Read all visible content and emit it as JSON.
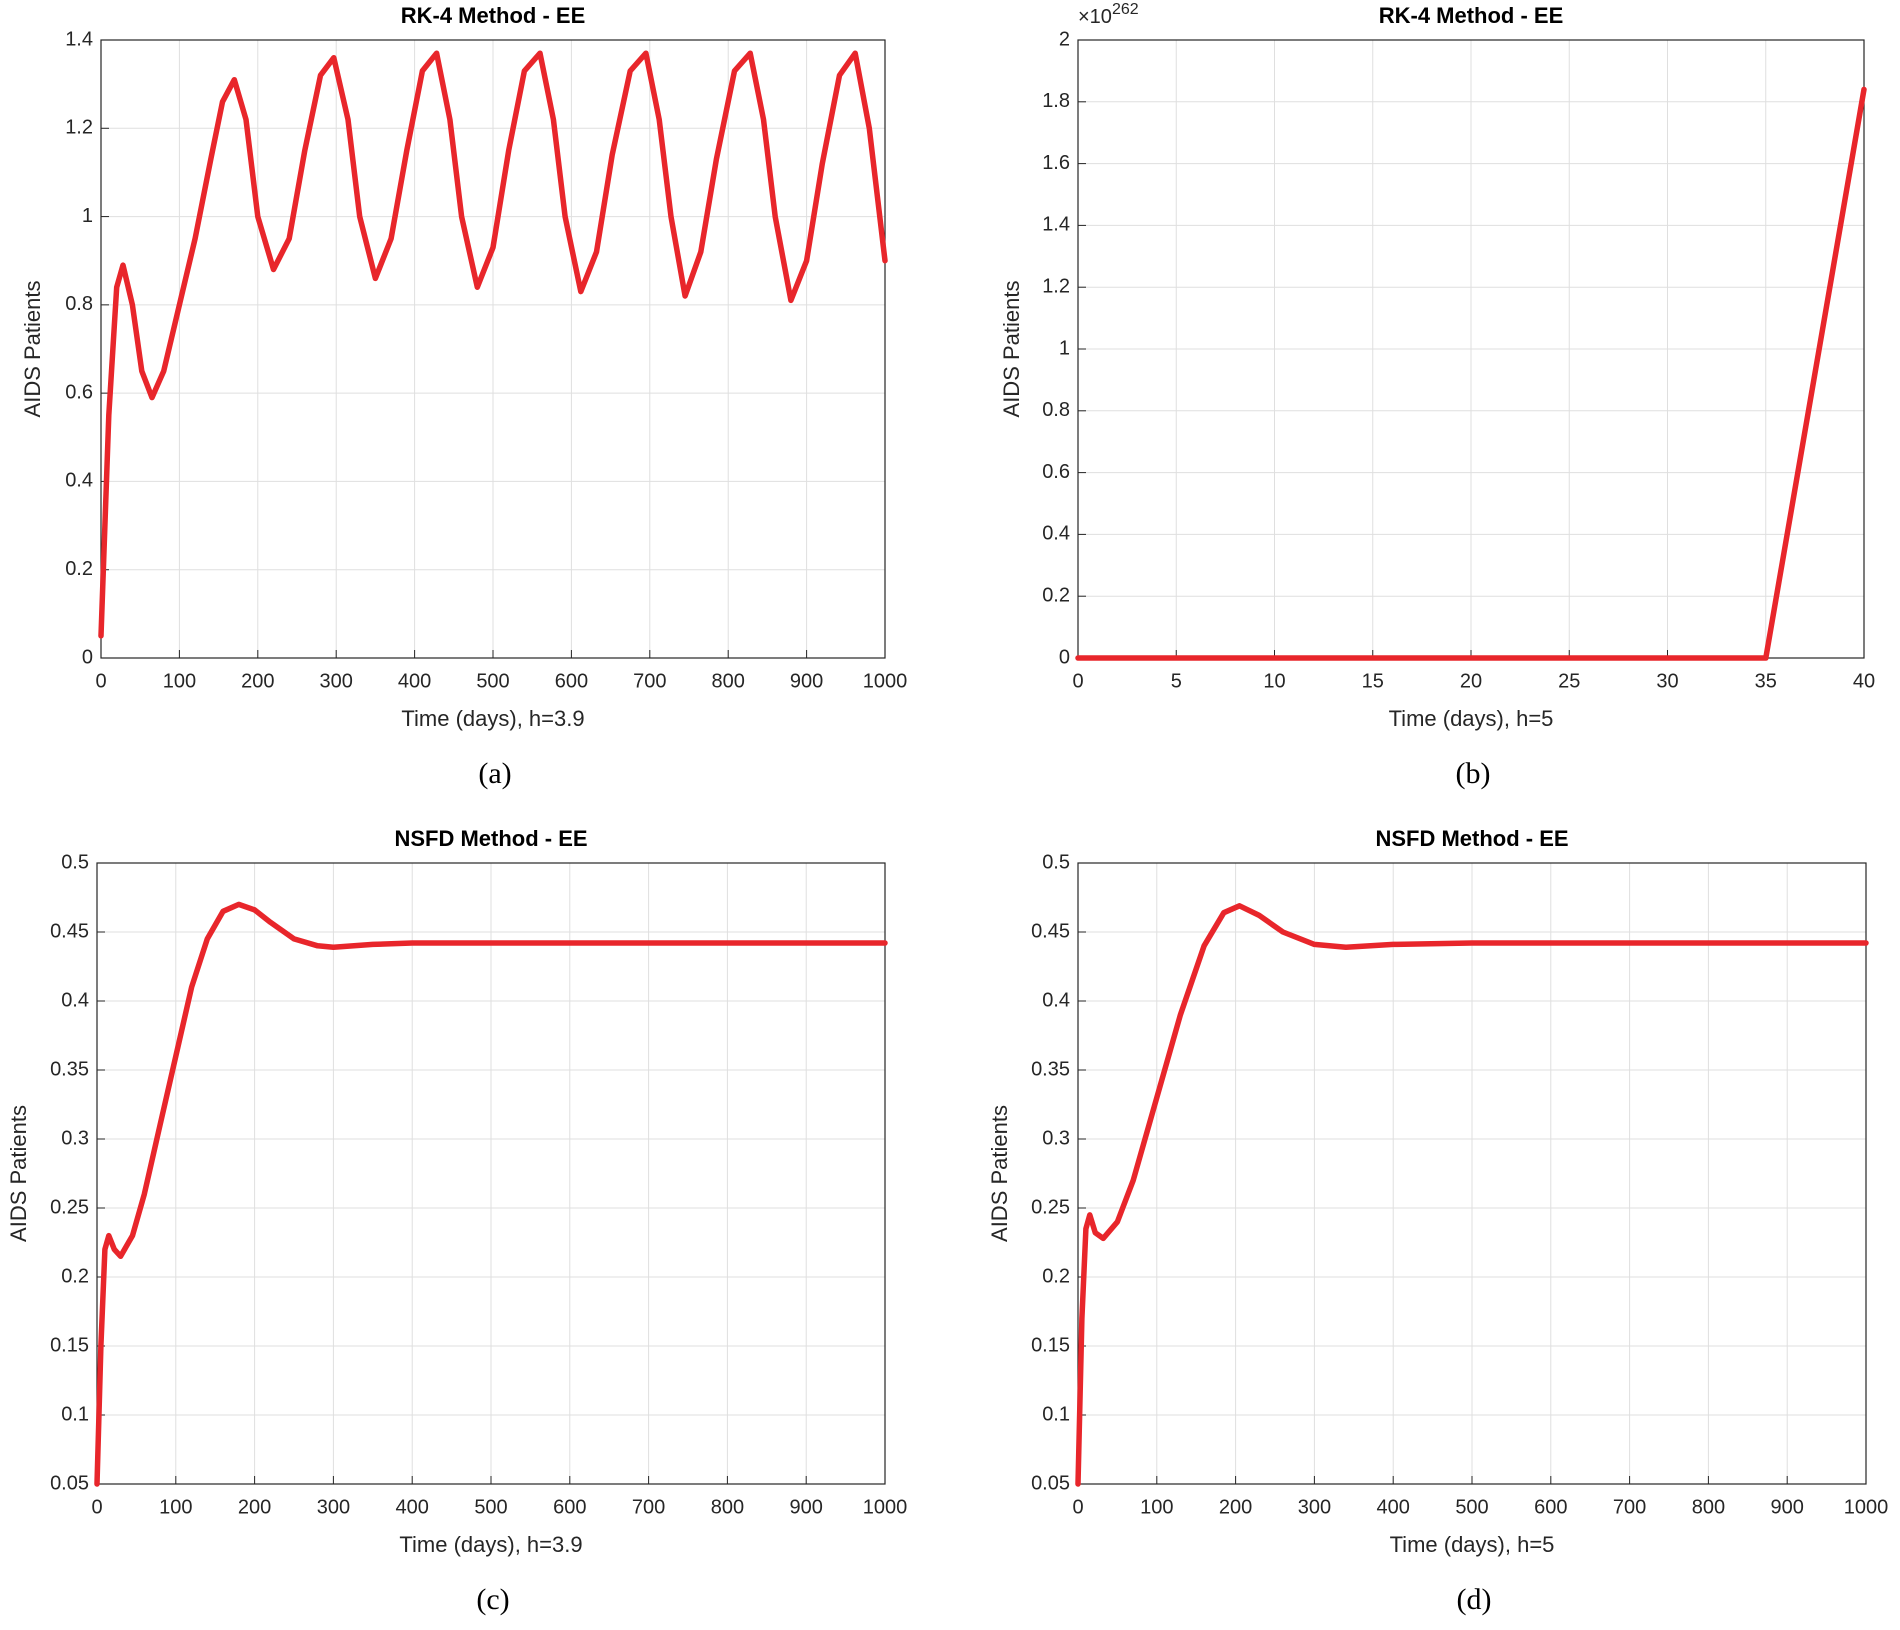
{
  "chart_data": [
    {
      "type": "line",
      "title": "RK-4 Method - EE",
      "xlabel": "Time (days), h=3.9",
      "ylabel": "AIDS Patients",
      "caption": "(a)",
      "grid": true,
      "xlim": [
        0,
        1000
      ],
      "ylim": [
        0,
        1.4
      ],
      "xticks": [
        0,
        100,
        200,
        300,
        400,
        500,
        600,
        700,
        800,
        900,
        1000
      ],
      "yticks": [
        0,
        0.2,
        0.4,
        0.6,
        0.8,
        1,
        1.2,
        1.4
      ],
      "x": [
        0,
        10,
        20,
        28,
        40,
        52,
        65,
        80,
        100,
        120,
        140,
        155,
        170,
        185,
        200,
        220,
        240,
        260,
        280,
        297,
        315,
        330,
        350,
        370,
        390,
        410,
        428,
        445,
        460,
        480,
        500,
        520,
        540,
        560,
        577,
        592,
        612,
        632,
        652,
        675,
        695,
        712,
        727,
        745,
        765,
        785,
        808,
        828,
        845,
        860,
        880,
        900,
        920,
        942,
        962,
        980,
        1000
      ],
      "series": [
        {
          "color": "#e8262b",
          "values": [
            0.05,
            0.55,
            0.84,
            0.89,
            0.8,
            0.65,
            0.59,
            0.65,
            0.8,
            0.95,
            1.13,
            1.26,
            1.31,
            1.22,
            1.0,
            0.88,
            0.95,
            1.15,
            1.32,
            1.36,
            1.22,
            1.0,
            0.86,
            0.95,
            1.15,
            1.33,
            1.37,
            1.22,
            1.0,
            0.84,
            0.93,
            1.15,
            1.33,
            1.37,
            1.22,
            1.0,
            0.83,
            0.92,
            1.14,
            1.33,
            1.37,
            1.22,
            1.0,
            0.82,
            0.92,
            1.13,
            1.33,
            1.37,
            1.22,
            1.0,
            0.81,
            0.9,
            1.12,
            1.32,
            1.37,
            1.2,
            0.9
          ]
        }
      ]
    },
    {
      "type": "line",
      "title": "RK-4 Method - EE",
      "xlabel": "Time (days), h=5",
      "ylabel": "AIDS Patients",
      "caption": "(b)",
      "y_exponent": {
        "base": "×10",
        "power": "262"
      },
      "grid": true,
      "xlim": [
        0,
        40
      ],
      "ylim": [
        0,
        2
      ],
      "xticks": [
        0,
        5,
        10,
        15,
        20,
        25,
        30,
        35,
        40
      ],
      "yticks": [
        0,
        0.2,
        0.4,
        0.6,
        0.8,
        1,
        1.2,
        1.4,
        1.6,
        1.8,
        2
      ],
      "x": [
        0,
        5,
        10,
        15,
        20,
        25,
        30,
        35,
        40
      ],
      "series": [
        {
          "color": "#e8262b",
          "values": [
            0,
            0,
            0,
            0,
            0,
            0,
            0,
            0,
            1.84
          ]
        }
      ]
    },
    {
      "type": "line",
      "title": "NSFD Method - EE",
      "xlabel": "Time (days), h=3.9",
      "ylabel": "AIDS Patients",
      "caption": "(c)",
      "grid": true,
      "xlim": [
        0,
        1000
      ],
      "ylim": [
        0.05,
        0.5
      ],
      "xticks": [
        0,
        100,
        200,
        300,
        400,
        500,
        600,
        700,
        800,
        900,
        1000
      ],
      "yticks": [
        0.05,
        0.1,
        0.15,
        0.2,
        0.25,
        0.3,
        0.35,
        0.4,
        0.45,
        0.5
      ],
      "x": [
        0,
        5,
        10,
        15,
        22,
        30,
        45,
        60,
        80,
        100,
        120,
        140,
        160,
        180,
        200,
        220,
        250,
        280,
        300,
        350,
        400,
        450,
        500,
        600,
        700,
        800,
        900,
        1000
      ],
      "series": [
        {
          "color": "#e8262b",
          "values": [
            0.05,
            0.15,
            0.22,
            0.23,
            0.22,
            0.215,
            0.23,
            0.26,
            0.31,
            0.36,
            0.41,
            0.445,
            0.465,
            0.47,
            0.466,
            0.457,
            0.445,
            0.44,
            0.439,
            0.441,
            0.442,
            0.442,
            0.442,
            0.442,
            0.442,
            0.442,
            0.442,
            0.442
          ]
        }
      ]
    },
    {
      "type": "line",
      "title": "NSFD Method - EE",
      "xlabel": "Time (days), h=5",
      "ylabel": "AIDS Patients",
      "caption": "(d)",
      "grid": true,
      "xlim": [
        0,
        1000
      ],
      "ylim": [
        0.05,
        0.5
      ],
      "xticks": [
        0,
        100,
        200,
        300,
        400,
        500,
        600,
        700,
        800,
        900,
        1000
      ],
      "yticks": [
        0.05,
        0.1,
        0.15,
        0.2,
        0.25,
        0.3,
        0.35,
        0.4,
        0.45,
        0.5
      ],
      "x": [
        0,
        5,
        10,
        15,
        22,
        32,
        50,
        70,
        100,
        130,
        160,
        185,
        205,
        230,
        260,
        300,
        340,
        400,
        500,
        600,
        700,
        800,
        900,
        1000
      ],
      "series": [
        {
          "color": "#e8262b",
          "values": [
            0.05,
            0.17,
            0.235,
            0.245,
            0.232,
            0.228,
            0.24,
            0.27,
            0.33,
            0.39,
            0.44,
            0.464,
            0.469,
            0.462,
            0.45,
            0.441,
            0.439,
            0.441,
            0.442,
            0.442,
            0.442,
            0.442,
            0.442,
            0.442
          ]
        }
      ]
    }
  ]
}
